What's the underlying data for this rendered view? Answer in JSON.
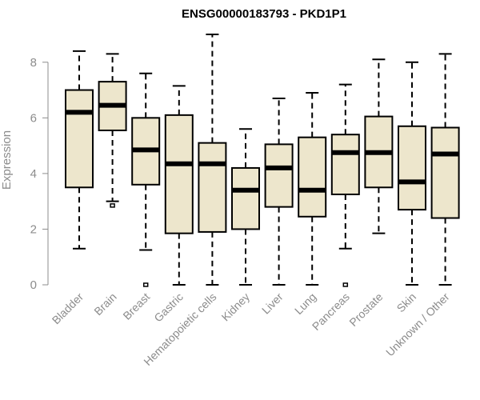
{
  "chart_data": {
    "type": "box",
    "title": "ENSG00000183793 - PKD1P1",
    "xlabel": "",
    "ylabel": "Expression",
    "ylim": [
      0,
      9
    ],
    "yticks": [
      0,
      2,
      4,
      6,
      8
    ],
    "grid": false,
    "colors": {
      "box_fill": "#ede6cc",
      "box_stroke": "#000000",
      "axis": "#8c8c8c"
    },
    "categories": [
      "Bladder",
      "Brain",
      "Breast",
      "Gastric",
      "Hematopoietic cells",
      "Kidney",
      "Liver",
      "Lung",
      "Pancreas",
      "Prostate",
      "Skin",
      "Unknown / Other"
    ],
    "boxes": [
      {
        "category": "Bladder",
        "whisker_low": 1.3,
        "q1": 3.5,
        "median": 6.2,
        "q3": 7.0,
        "whisker_high": 8.4,
        "outliers": []
      },
      {
        "category": "Brain",
        "whisker_low": 3.0,
        "q1": 5.55,
        "median": 6.45,
        "q3": 7.3,
        "whisker_high": 8.3,
        "outliers": [
          2.85
        ]
      },
      {
        "category": "Breast",
        "whisker_low": 1.25,
        "q1": 3.6,
        "median": 4.85,
        "q3": 6.0,
        "whisker_high": 7.6,
        "outliers": [
          0.0
        ]
      },
      {
        "category": "Gastric",
        "whisker_low": 0.0,
        "q1": 1.85,
        "median": 4.35,
        "q3": 6.1,
        "whisker_high": 7.15,
        "outliers": []
      },
      {
        "category": "Hematopoietic cells",
        "whisker_low": 0.0,
        "q1": 1.9,
        "median": 4.35,
        "q3": 5.1,
        "whisker_high": 9.0,
        "outliers": []
      },
      {
        "category": "Kidney",
        "whisker_low": 0.0,
        "q1": 2.0,
        "median": 3.4,
        "q3": 4.2,
        "whisker_high": 5.6,
        "outliers": []
      },
      {
        "category": "Liver",
        "whisker_low": 0.0,
        "q1": 2.8,
        "median": 4.2,
        "q3": 5.05,
        "whisker_high": 6.7,
        "outliers": []
      },
      {
        "category": "Lung",
        "whisker_low": 0.0,
        "q1": 2.45,
        "median": 3.4,
        "q3": 5.3,
        "whisker_high": 6.9,
        "outliers": []
      },
      {
        "category": "Pancreas",
        "whisker_low": 1.3,
        "q1": 3.25,
        "median": 4.75,
        "q3": 5.4,
        "whisker_high": 7.2,
        "outliers": [
          0.0
        ]
      },
      {
        "category": "Prostate",
        "whisker_low": 1.85,
        "q1": 3.5,
        "median": 4.75,
        "q3": 6.05,
        "whisker_high": 8.1,
        "outliers": []
      },
      {
        "category": "Skin",
        "whisker_low": 0.0,
        "q1": 2.7,
        "median": 3.7,
        "q3": 5.7,
        "whisker_high": 8.0,
        "outliers": []
      },
      {
        "category": "Unknown / Other",
        "whisker_low": 0.0,
        "q1": 2.4,
        "median": 4.7,
        "q3": 5.65,
        "whisker_high": 8.3,
        "outliers": []
      }
    ]
  }
}
